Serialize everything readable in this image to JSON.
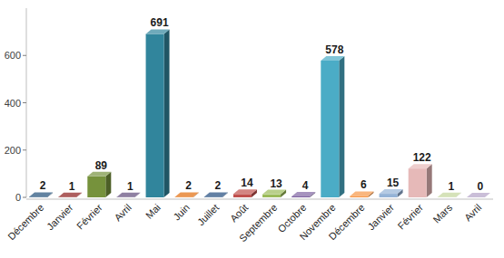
{
  "chart_data": {
    "type": "bar",
    "categories": [
      "Décembre",
      "Janvier",
      "Février",
      "Avril",
      "Mai",
      "Juin",
      "Juillet",
      "Août",
      "Septembre",
      "Octobre",
      "Novembre",
      "Décembre",
      "Janvier",
      "Février",
      "Mars",
      "Avril"
    ],
    "values": [
      2,
      1,
      89,
      1,
      691,
      2,
      2,
      14,
      13,
      4,
      578,
      6,
      15,
      122,
      1,
      0
    ],
    "colors": [
      "#1f4e79",
      "#8b1a1a",
      "#76923c",
      "#5f497a",
      "#31859c",
      "#e36c09",
      "#1f497d",
      "#c0504d",
      "#9bbb59",
      "#8064a2",
      "#4bacc6",
      "#f79646",
      "#95b3d7",
      "#e6b9b8",
      "#c3d69b",
      "#b3a2c7"
    ],
    "ylim": [
      0,
      800
    ],
    "yticks": [
      0,
      200,
      400,
      600
    ],
    "grid": false,
    "data_labels": true
  }
}
